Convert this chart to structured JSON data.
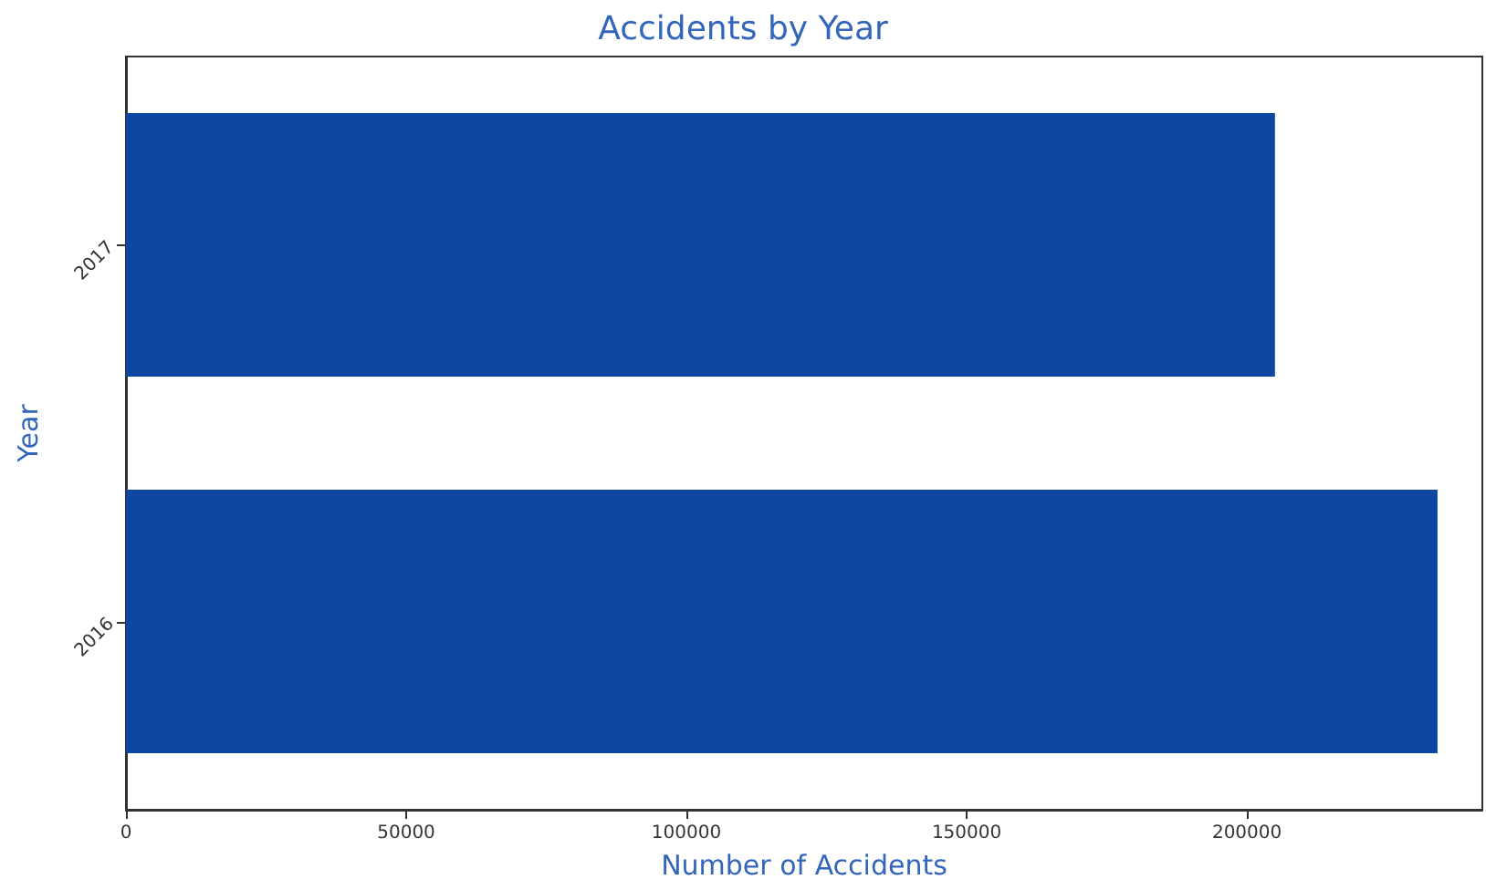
{
  "chart_data": {
    "type": "bar",
    "orientation": "horizontal",
    "title": "Accidents by Year",
    "xlabel": "Number of Accidents",
    "ylabel": "Year",
    "categories": [
      "2017",
      "2016"
    ],
    "values": [
      205000,
      234000
    ],
    "color": "#0d47a1",
    "xlim": [
      0,
      242000
    ],
    "xticks": [
      0,
      50000,
      100000,
      150000,
      200000
    ],
    "grid": false
  }
}
